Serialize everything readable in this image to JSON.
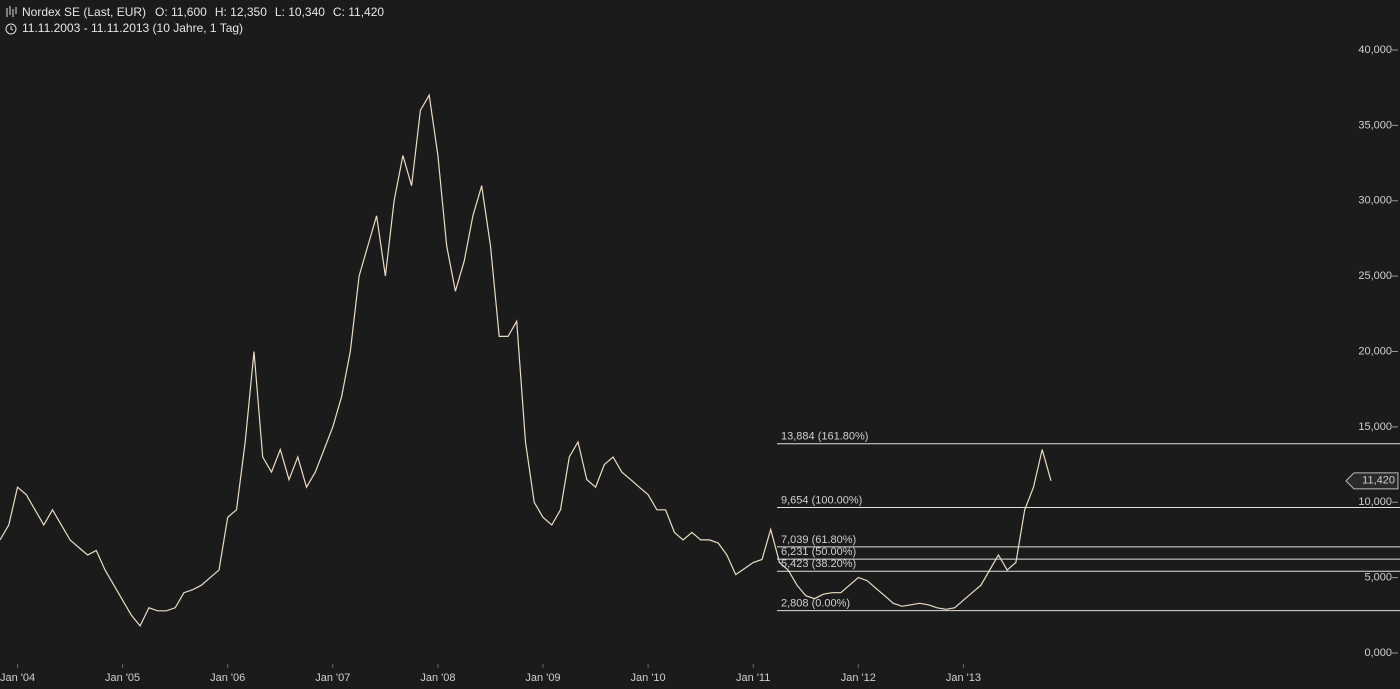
{
  "chart_data": {
    "type": "line",
    "title": "Nordex SE (Last, EUR)",
    "quote": [
      "O: 11,600",
      "H: 12,350",
      "L: 10,340",
      "C: 11,420"
    ],
    "subtitle": "11.11.2003 - 11.11.2013 (10 Jahre, 1 Tag)",
    "x": [
      "2003-11",
      "2003-12",
      "2004-01",
      "2004-02",
      "2004-03",
      "2004-04",
      "2004-05",
      "2004-06",
      "2004-07",
      "2004-08",
      "2004-09",
      "2004-10",
      "2004-11",
      "2004-12",
      "2005-01",
      "2005-02",
      "2005-03",
      "2005-04",
      "2005-05",
      "2005-06",
      "2005-07",
      "2005-08",
      "2005-09",
      "2005-10",
      "2005-11",
      "2005-12",
      "2006-01",
      "2006-02",
      "2006-03",
      "2006-04",
      "2006-05",
      "2006-06",
      "2006-07",
      "2006-08",
      "2006-09",
      "2006-10",
      "2006-11",
      "2006-12",
      "2007-01",
      "2007-02",
      "2007-03",
      "2007-04",
      "2007-05",
      "2007-06",
      "2007-07",
      "2007-08",
      "2007-09",
      "2007-10",
      "2007-11",
      "2007-12",
      "2008-01",
      "2008-02",
      "2008-03",
      "2008-04",
      "2008-05",
      "2008-06",
      "2008-07",
      "2008-08",
      "2008-09",
      "2008-10",
      "2008-11",
      "2008-12",
      "2009-01",
      "2009-02",
      "2009-03",
      "2009-04",
      "2009-05",
      "2009-06",
      "2009-07",
      "2009-08",
      "2009-09",
      "2009-10",
      "2009-11",
      "2009-12",
      "2010-01",
      "2010-02",
      "2010-03",
      "2010-04",
      "2010-05",
      "2010-06",
      "2010-07",
      "2010-08",
      "2010-09",
      "2010-10",
      "2010-11",
      "2010-12",
      "2011-01",
      "2011-02",
      "2011-03",
      "2011-04",
      "2011-05",
      "2011-06",
      "2011-07",
      "2011-08",
      "2011-09",
      "2011-10",
      "2011-11",
      "2011-12",
      "2012-01",
      "2012-02",
      "2012-03",
      "2012-04",
      "2012-05",
      "2012-06",
      "2012-07",
      "2012-08",
      "2012-09",
      "2012-10",
      "2012-11",
      "2012-12",
      "2013-01",
      "2013-02",
      "2013-03",
      "2013-04",
      "2013-05",
      "2013-06",
      "2013-07",
      "2013-08",
      "2013-09",
      "2013-10",
      "2013-11"
    ],
    "series": [
      {
        "name": "Nordex SE",
        "color": "#eadcc4",
        "values": [
          7.5,
          8.5,
          11,
          10.5,
          9.5,
          8.5,
          9.5,
          8.5,
          7.5,
          7,
          6.5,
          6.8,
          5.5,
          4.5,
          3.5,
          2.5,
          1.8,
          3,
          2.8,
          2.8,
          3,
          4,
          4.2,
          4.5,
          5,
          5.5,
          9,
          9.5,
          14,
          20,
          13,
          12,
          13.5,
          11.5,
          13,
          11,
          12,
          13.5,
          15,
          17,
          20,
          25,
          27,
          29,
          25,
          30,
          33,
          31,
          36,
          37,
          33,
          27,
          24,
          26,
          29,
          31,
          27,
          21,
          21,
          22,
          14,
          10,
          9,
          8.5,
          9.5,
          13,
          14,
          11.5,
          11,
          12.5,
          13,
          12,
          11.5,
          11,
          10.5,
          9.5,
          9.5,
          8,
          7.5,
          8,
          7.5,
          7.5,
          7.3,
          6.5,
          5.2,
          5.6,
          6,
          6.2,
          8.2,
          6,
          5.5,
          4.5,
          3.8,
          3.6,
          3.9,
          4,
          4,
          4.5,
          5,
          4.8,
          4.3,
          3.8,
          3.3,
          3.1,
          3.2,
          3.3,
          3.2,
          3,
          2.9,
          3,
          3.5,
          4,
          4.5,
          5.5,
          6.5,
          5.5,
          6,
          9.5,
          11,
          13.5,
          11.42
        ]
      }
    ],
    "xlim": [
      "2003-11",
      "2016-08"
    ],
    "xticks": [
      {
        "value": "2004-01",
        "label": "Jan '04"
      },
      {
        "value": "2005-01",
        "label": "Jan '05"
      },
      {
        "value": "2006-01",
        "label": "Jan '06"
      },
      {
        "value": "2007-01",
        "label": "Jan '07"
      },
      {
        "value": "2008-01",
        "label": "Jan '08"
      },
      {
        "value": "2009-01",
        "label": "Jan '09"
      },
      {
        "value": "2010-01",
        "label": "Jan '10"
      },
      {
        "value": "2011-01",
        "label": "Jan '11"
      },
      {
        "value": "2012-01",
        "label": "Jan '12"
      },
      {
        "value": "2013-01",
        "label": "Jan '13"
      }
    ],
    "ylim": [
      0,
      40
    ],
    "yticks": [
      {
        "value": 0,
        "label": "0,000"
      },
      {
        "value": 5,
        "label": "5,000"
      },
      {
        "value": 10,
        "label": "10,000"
      },
      {
        "value": 15,
        "label": "15,000"
      },
      {
        "value": 20,
        "label": "20,000"
      },
      {
        "value": 25,
        "label": "25,000"
      },
      {
        "value": 30,
        "label": "30,000"
      },
      {
        "value": 35,
        "label": "35,000"
      },
      {
        "value": 40,
        "label": "40,000"
      }
    ],
    "last": {
      "value": 11.42,
      "label": "11,420"
    },
    "levels": [
      {
        "value": 13.884,
        "label": "13,884 (161.80%)"
      },
      {
        "value": 9.654,
        "label": "9,654 (100.00%)"
      },
      {
        "value": 7.039,
        "label": "7,039 (61.80%)"
      },
      {
        "value": 6.231,
        "label": "6,231 (50.00%)"
      },
      {
        "value": 5.423,
        "label": "5,423 (38.20%)"
      },
      {
        "value": 2.808,
        "label": "2,808 (0.00%)"
      }
    ]
  }
}
